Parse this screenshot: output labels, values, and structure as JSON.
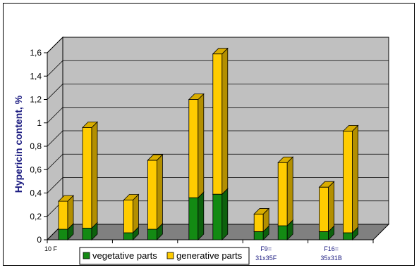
{
  "chart_data": {
    "type": "bar",
    "stacked": true,
    "three_d": true,
    "ylabel": "Hypericin content, %",
    "ylim": [
      0,
      1.6
    ],
    "yticks": [
      "0",
      "0,2",
      "0,4",
      "0,6",
      "0,8",
      "1",
      "1,2",
      "1,4",
      "1,6"
    ],
    "grid": true,
    "legend_position": "bottom",
    "group_labels": [
      {
        "label": "10 F"
      },
      {
        "label": ""
      },
      {
        "label": ""
      },
      {
        "label": "F9=\n31x35F"
      },
      {
        "label": "F16=\n35x31B"
      }
    ],
    "series": [
      {
        "name": "vegetative parts",
        "color": "#138a13",
        "values": [
          0.09,
          0.1,
          0.06,
          0.09,
          0.36,
          0.39,
          0.07,
          0.12,
          0.07,
          0.06
        ]
      },
      {
        "name": "generative parts",
        "color": "#ffcc00",
        "values": [
          0.24,
          0.86,
          0.28,
          0.59,
          0.84,
          1.2,
          0.15,
          0.54,
          0.38,
          0.87
        ]
      }
    ],
    "colors": {
      "wall": "#c0c0c0",
      "floor": "#808080",
      "grid": "#000000"
    }
  }
}
